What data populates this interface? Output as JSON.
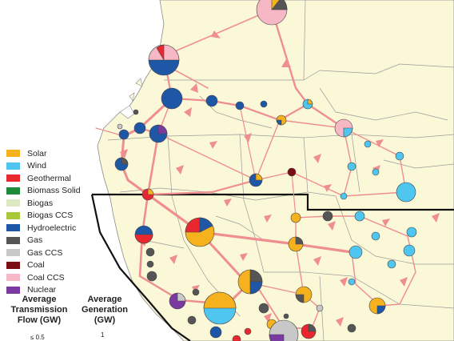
{
  "legend": {
    "items": [
      {
        "label": "Solar",
        "color": "#f5b21e"
      },
      {
        "label": "Wind",
        "color": "#4fc6ef"
      },
      {
        "label": "Geothermal",
        "color": "#e8282e"
      },
      {
        "label": "Biomass Solid",
        "color": "#1e8a3c"
      },
      {
        "label": "Biogas",
        "color": "#dbe9c4"
      },
      {
        "label": "Biogas CCS",
        "color": "#a8c83c"
      },
      {
        "label": "Hydroelectric",
        "color": "#1f57a7"
      },
      {
        "label": "Gas",
        "color": "#555555"
      },
      {
        "label": "Gas CCS",
        "color": "#c8c8c8"
      },
      {
        "label": "Coal",
        "color": "#7a0e12"
      },
      {
        "label": "Coal CCS",
        "color": "#f6b8c4"
      },
      {
        "label": "Nuclear",
        "color": "#7a3aa0"
      }
    ]
  },
  "captions": {
    "flow": "Average Transmission Flow (GW)",
    "flow_small": "≤ 0.5",
    "generation": "Average Generation (GW)",
    "generation_small": "1"
  },
  "colors": {
    "land": "#fbf8d8",
    "water": "#ffffff",
    "border": "#8a8a8a",
    "line": "#ef8d90",
    "region": "#000000"
  }
}
